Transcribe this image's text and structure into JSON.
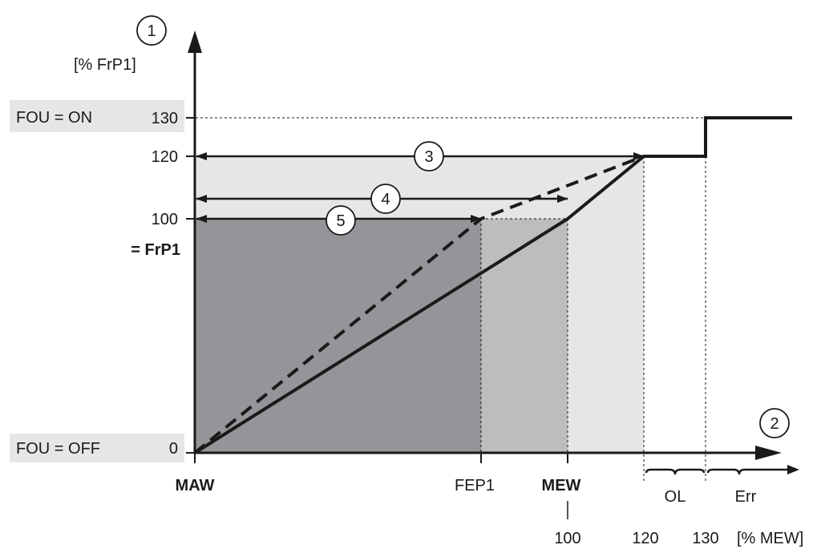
{
  "y_axis": {
    "marker": "1",
    "unit": "[% FrP1]",
    "ticks": [
      "130",
      "120",
      "100",
      "0"
    ],
    "frp1_label": "= FrP1"
  },
  "x_axis": {
    "marker": "2",
    "labels": {
      "maw": "MAW",
      "fep1": "FEP1",
      "mew": "MEW"
    },
    "ticks": [
      "100",
      "120",
      "130"
    ],
    "unit": "[% MEW]"
  },
  "fou": {
    "on": "FOU = ON",
    "off": "FOU = OFF"
  },
  "ranges": {
    "r3": "3",
    "r4": "4",
    "r5": "5"
  },
  "zones": {
    "ol": "OL",
    "err": "Err"
  },
  "colors": {
    "zone_light": "#e6e6e7",
    "zone_mid": "#bcbdbf",
    "zone_dark": "#939598",
    "band": "#e6e6e7",
    "line": "#1a1a1a"
  }
}
